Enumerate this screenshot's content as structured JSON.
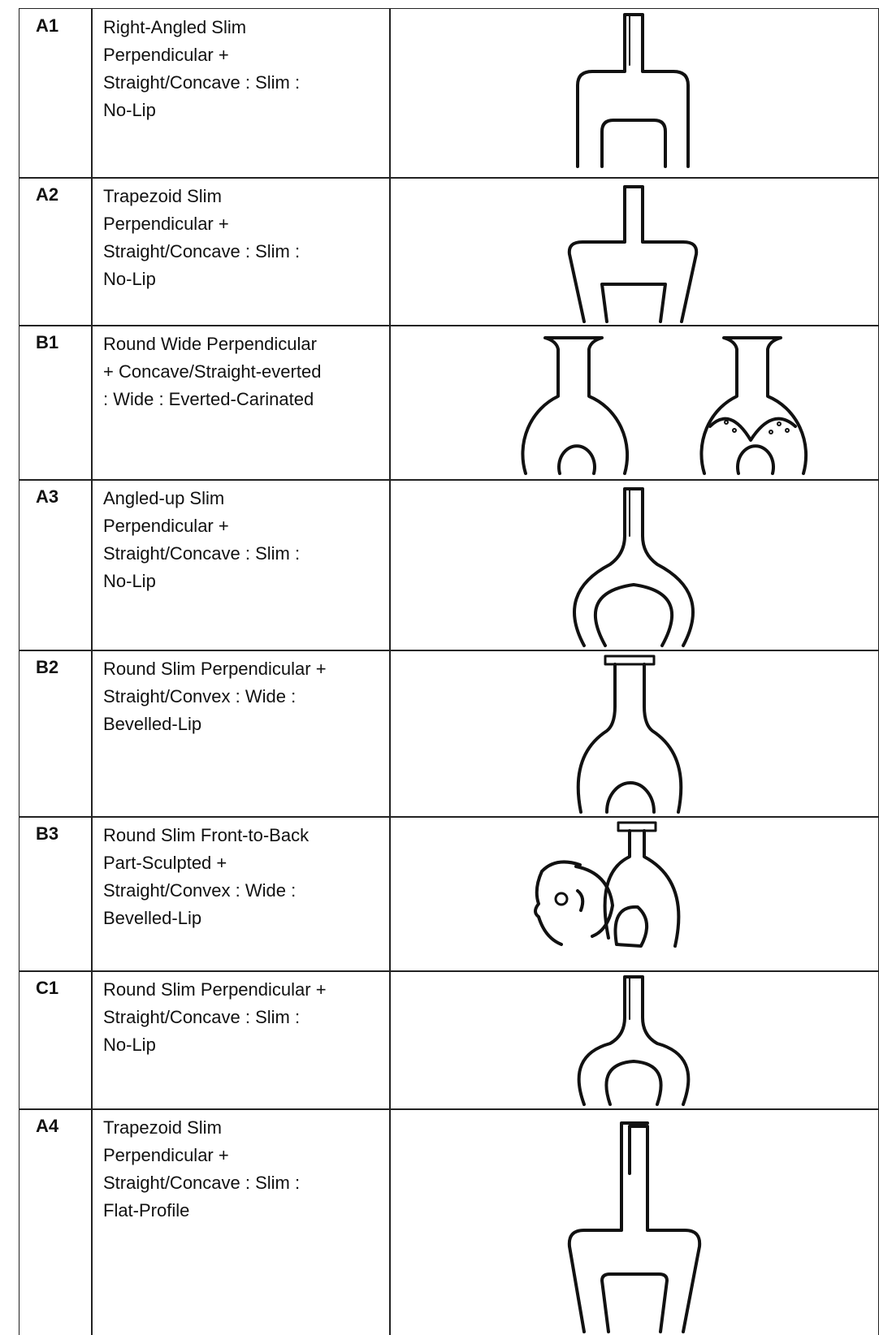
{
  "table": {
    "rows": [
      {
        "id": "A1",
        "lines": [
          "Right-Angled Slim",
          "Perpendicular +",
          "Straight/Concave : Slim :",
          "No-Lip"
        ]
      },
      {
        "id": "A2",
        "lines": [
          "Trapezoid Slim",
          "Perpendicular +",
          "Straight/Concave : Slim :",
          "No-Lip"
        ]
      },
      {
        "id": "B1",
        "lines": [
          "Round Wide Perpendicular",
          "+ Concave/Straight-everted",
          ": Wide : Everted-Carinated"
        ]
      },
      {
        "id": "A3",
        "lines": [
          "Angled-up Slim",
          "Perpendicular +",
          "Straight/Concave : Slim :",
          "No-Lip"
        ]
      },
      {
        "id": "B2",
        "lines": [
          "Round Slim Perpendicular +",
          "Straight/Convex : Wide :",
          "Bevelled-Lip"
        ]
      },
      {
        "id": "B3",
        "lines": [
          "Round Slim Front-to-Back",
          "Part-Sculpted +",
          "Straight/Convex : Wide :",
          "Bevelled-Lip"
        ]
      },
      {
        "id": "C1",
        "lines": [
          "Round Slim Perpendicular +",
          "Straight/Concave : Slim :",
          "No-Lip"
        ]
      },
      {
        "id": "A4",
        "lines": [
          "Trapezoid Slim",
          "Perpendicular +",
          "Straight/Concave : Slim :",
          "Flat-Profile"
        ]
      }
    ]
  }
}
